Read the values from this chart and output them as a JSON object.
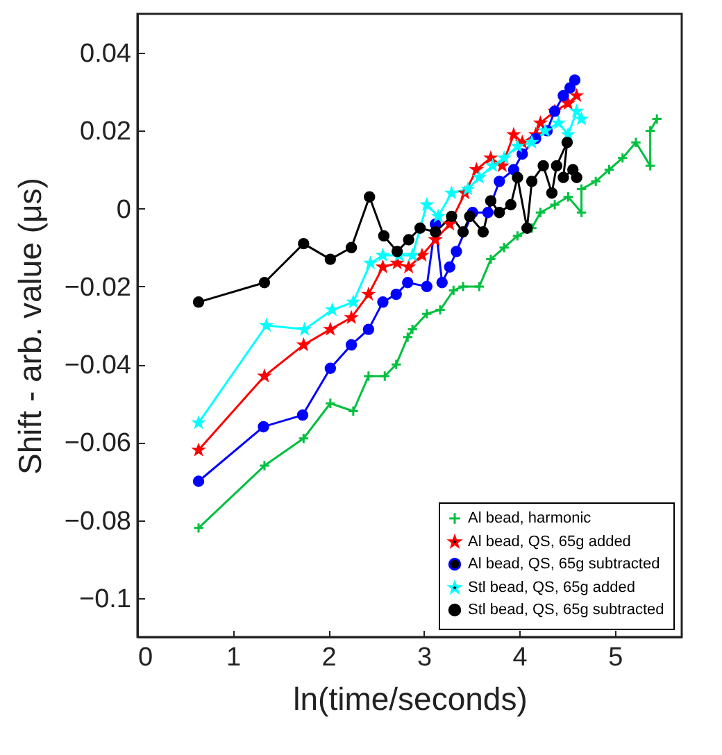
{
  "chart_data": {
    "type": "line",
    "xlabel": "ln(time/seconds)",
    "ylabel": "Shift - arb. value (μs)",
    "xlim": [
      0,
      5.7
    ],
    "ylim": [
      -0.11,
      0.05
    ],
    "xticks": [
      0,
      1,
      2,
      3,
      4,
      5
    ],
    "yticks": [
      -0.1,
      -0.08,
      -0.06,
      -0.04,
      -0.02,
      0,
      0.02,
      0.04
    ],
    "grid": false,
    "legend": "bottom right",
    "series": [
      {
        "name": "Al bead, harmonic",
        "color": "#00c040",
        "marker": "cross",
        "x": [
          0.64,
          1.33,
          1.74,
          2.02,
          2.26,
          2.42,
          2.59,
          2.71,
          2.83,
          2.88,
          3.03,
          3.17,
          3.31,
          3.41,
          3.58,
          3.7,
          3.84,
          3.98,
          4.13,
          4.22,
          4.37,
          4.51,
          4.65,
          4.65,
          4.8,
          4.94,
          5.08,
          5.22,
          5.37,
          5.37,
          5.44
        ],
        "values": [
          -0.082,
          -0.066,
          -0.059,
          -0.05,
          -0.052,
          -0.043,
          -0.043,
          -0.04,
          -0.033,
          -0.031,
          -0.027,
          -0.026,
          -0.021,
          -0.02,
          -0.02,
          -0.013,
          -0.01,
          -0.007,
          -0.005,
          -0.001,
          0.001,
          0.003,
          -0.001,
          0.005,
          0.007,
          0.01,
          0.013,
          0.017,
          0.011,
          0.02,
          0.023
        ]
      },
      {
        "name": "Al bead, QS, 65g added",
        "color": "#ff0000",
        "marker": "star",
        "x": [
          0.64,
          1.33,
          1.74,
          2.02,
          2.24,
          2.42,
          2.57,
          2.72,
          2.84,
          2.98,
          3.12,
          3.27,
          3.43,
          3.55,
          3.7,
          3.82,
          3.94,
          4.03,
          4.17,
          4.22,
          4.37,
          4.51,
          4.6
        ],
        "values": [
          -0.062,
          -0.043,
          -0.035,
          -0.031,
          -0.028,
          -0.022,
          -0.015,
          -0.014,
          -0.015,
          -0.012,
          -0.008,
          -0.004,
          0.004,
          0.01,
          0.013,
          0.011,
          0.019,
          0.017,
          0.019,
          0.022,
          0.025,
          0.027,
          0.029
        ]
      },
      {
        "name": "Al bead, QS, 65g subtracted",
        "color": "#0000ff",
        "marker": "circle",
        "x": [
          0.64,
          1.32,
          1.73,
          2.02,
          2.24,
          2.42,
          2.57,
          2.71,
          2.83,
          3.03,
          3.12,
          3.19,
          3.27,
          3.34,
          3.51,
          3.67,
          3.79,
          3.94,
          4.03,
          4.17,
          4.29,
          4.37,
          4.46,
          4.53,
          4.58
        ],
        "values": [
          -0.07,
          -0.056,
          -0.053,
          -0.041,
          -0.035,
          -0.031,
          -0.024,
          -0.022,
          -0.019,
          -0.02,
          -0.004,
          -0.019,
          -0.015,
          -0.011,
          -0.001,
          -0.001,
          0.007,
          0.01,
          0.014,
          0.018,
          0.02,
          0.025,
          0.029,
          0.031,
          0.033
        ]
      },
      {
        "name": "Stl bead, QS, 65g added",
        "color": "#00ffff",
        "marker": "star",
        "x": [
          0.64,
          1.35,
          1.75,
          2.04,
          2.26,
          2.44,
          2.57,
          2.74,
          2.88,
          3.03,
          3.15,
          3.29,
          3.46,
          3.58,
          3.72,
          3.84,
          3.98,
          4.13,
          4.27,
          4.41,
          4.51,
          4.6,
          4.65
        ],
        "values": [
          -0.055,
          -0.03,
          -0.031,
          -0.026,
          -0.024,
          -0.014,
          -0.012,
          -0.012,
          -0.012,
          0.001,
          -0.002,
          0.004,
          0.005,
          0.008,
          0.011,
          0.013,
          0.016,
          0.017,
          0.02,
          0.022,
          0.019,
          0.025,
          0.023
        ]
      },
      {
        "name": "Stl bead, QS, 65g subtracted",
        "color": "#000000",
        "marker": "circle",
        "x": [
          0.64,
          1.33,
          1.74,
          2.02,
          2.24,
          2.43,
          2.58,
          2.72,
          2.84,
          2.96,
          3.12,
          3.29,
          3.41,
          3.48,
          3.62,
          3.7,
          3.79,
          3.91,
          3.98,
          4.08,
          4.13,
          4.25,
          4.34,
          4.39,
          4.5,
          4.46,
          4.56,
          4.6
        ],
        "values": [
          -0.024,
          -0.019,
          -0.009,
          -0.013,
          -0.01,
          0.003,
          -0.007,
          -0.011,
          -0.008,
          -0.005,
          -0.006,
          -0.002,
          -0.006,
          -0.002,
          -0.006,
          0.002,
          -0.001,
          0.001,
          0.008,
          -0.005,
          0.007,
          0.011,
          0.004,
          0.011,
          0.017,
          0.008,
          0.01,
          0.008
        ]
      }
    ]
  }
}
